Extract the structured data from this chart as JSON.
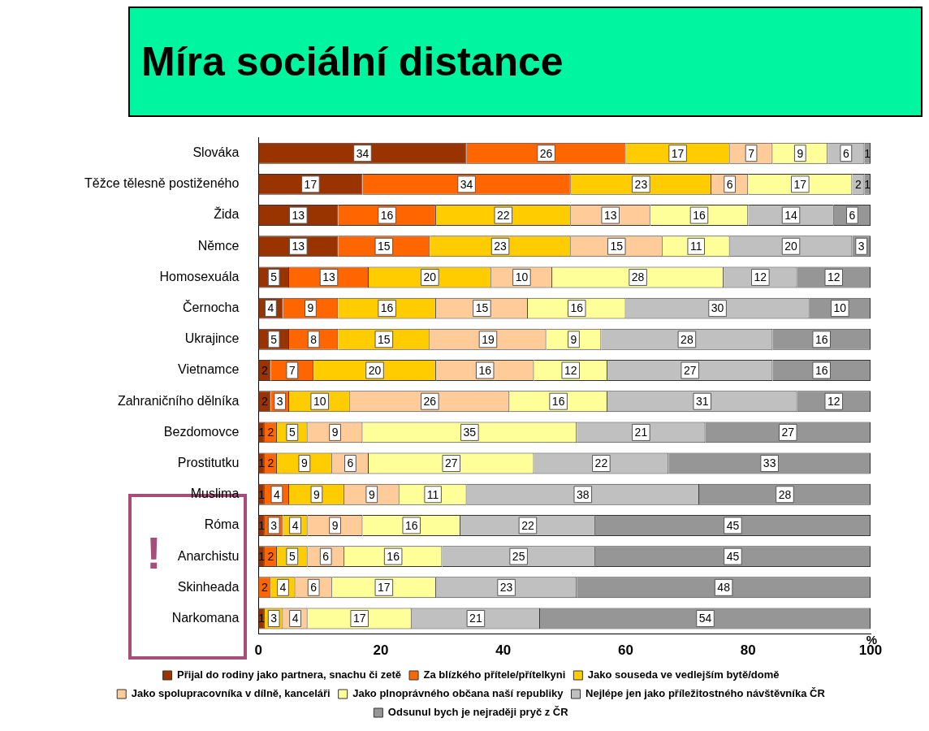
{
  "chart_data": {
    "type": "bar",
    "title": "Míra sociální distance",
    "orientation": "horizontal",
    "stacked": true,
    "xlabel": "%",
    "xlim": [
      0,
      100
    ],
    "annotations": [
      "!"
    ],
    "xticks": [
      0,
      20,
      40,
      60,
      80,
      100
    ],
    "grid": false,
    "legend": "bottom",
    "categories": [
      "Slováka",
      "Těžce tělesně postiženého",
      "Žida",
      "Němce",
      "Homosexuála",
      "Černocha",
      "Ukrajince",
      "Vietnamce",
      "Zahraničního dělníka",
      "Bezdomovce",
      "Prostitutku",
      "Muslima",
      "Róma",
      "Anarchistu",
      "Skinheada",
      "Narkomana"
    ],
    "series": [
      {
        "name": "Přijal do rodiny jako partnera, snachu či zetě",
        "color": "#993300",
        "values": [
          34,
          17,
          13,
          13,
          5,
          4,
          5,
          2,
          2,
          1,
          1,
          1,
          1,
          1,
          0,
          1
        ],
        "value_labels": [
          "34",
          "17",
          "13",
          "13",
          "5",
          "4",
          "5",
          "2",
          "2",
          "1",
          "1",
          "1",
          "1",
          "1",
          null,
          "1"
        ]
      },
      {
        "name": "Za blízkého přítele/přítelkyni",
        "color": "#ff6600",
        "values": [
          26,
          34,
          16,
          15,
          13,
          9,
          8,
          7,
          3,
          2,
          2,
          4,
          3,
          2,
          2,
          0
        ],
        "value_labels": [
          "26",
          "34",
          "16",
          "15",
          "13",
          "9",
          "8",
          "7",
          "3",
          "2",
          "2",
          "4",
          "3",
          "2",
          "2",
          null
        ]
      },
      {
        "name": "Jako souseda ve vedlejším bytě/domě",
        "color": "#ffcc00",
        "values": [
          17,
          23,
          22,
          23,
          20,
          16,
          15,
          20,
          10,
          5,
          9,
          9,
          4,
          5,
          4,
          3
        ],
        "value_labels": [
          "17",
          "23",
          "22",
          "23",
          "20",
          "16",
          "15",
          "20",
          "10",
          "5",
          "9",
          "9",
          "4",
          "5",
          "4",
          "3"
        ]
      },
      {
        "name": "Jako spolupracovníka v dílně, kanceláři",
        "color": "#ffcc99",
        "values": [
          7,
          6,
          13,
          15,
          10,
          15,
          19,
          16,
          26,
          9,
          6,
          9,
          9,
          6,
          6,
          4
        ],
        "value_labels": [
          "7",
          "6",
          "13",
          "15",
          "10",
          "15",
          "19",
          "16",
          "26",
          "9",
          "6",
          "9",
          "9",
          "6",
          "6",
          "4"
        ]
      },
      {
        "name": "Jako plnoprávného občana naší republiky",
        "color": "#ffff99",
        "values": [
          9,
          17,
          16,
          11,
          28,
          16,
          9,
          12,
          16,
          35,
          27,
          11,
          16,
          16,
          17,
          17
        ],
        "value_labels": [
          "9",
          "17",
          "16",
          "11",
          "28",
          "16",
          "9",
          "12",
          "16",
          "35",
          "27",
          "11",
          "16",
          "16",
          "17",
          "17"
        ]
      },
      {
        "name": "Nejlépe jen jako příležitostného návštěvníka ČR",
        "color": "#c0c0c0",
        "values": [
          6,
          2,
          14,
          20,
          12,
          30,
          28,
          27,
          31,
          21,
          22,
          38,
          22,
          25,
          23,
          21
        ],
        "value_labels": [
          "6",
          "2",
          "14",
          "20",
          "12",
          "30",
          "28",
          "27",
          "31",
          "21",
          "22",
          "38",
          "22",
          "25",
          "23",
          "21"
        ]
      },
      {
        "name": "Odsunul bych je nejraději pryč z ČR",
        "color": "#969696",
        "values": [
          1,
          1,
          6,
          3,
          12,
          10,
          16,
          16,
          12,
          27,
          33,
          28,
          45,
          45,
          48,
          54
        ],
        "value_labels": [
          "1",
          "1",
          "6",
          "3",
          "12",
          "10",
          "16",
          "16",
          "12",
          "27",
          "33",
          "28",
          "45",
          "45",
          "48",
          "54"
        ]
      }
    ]
  }
}
